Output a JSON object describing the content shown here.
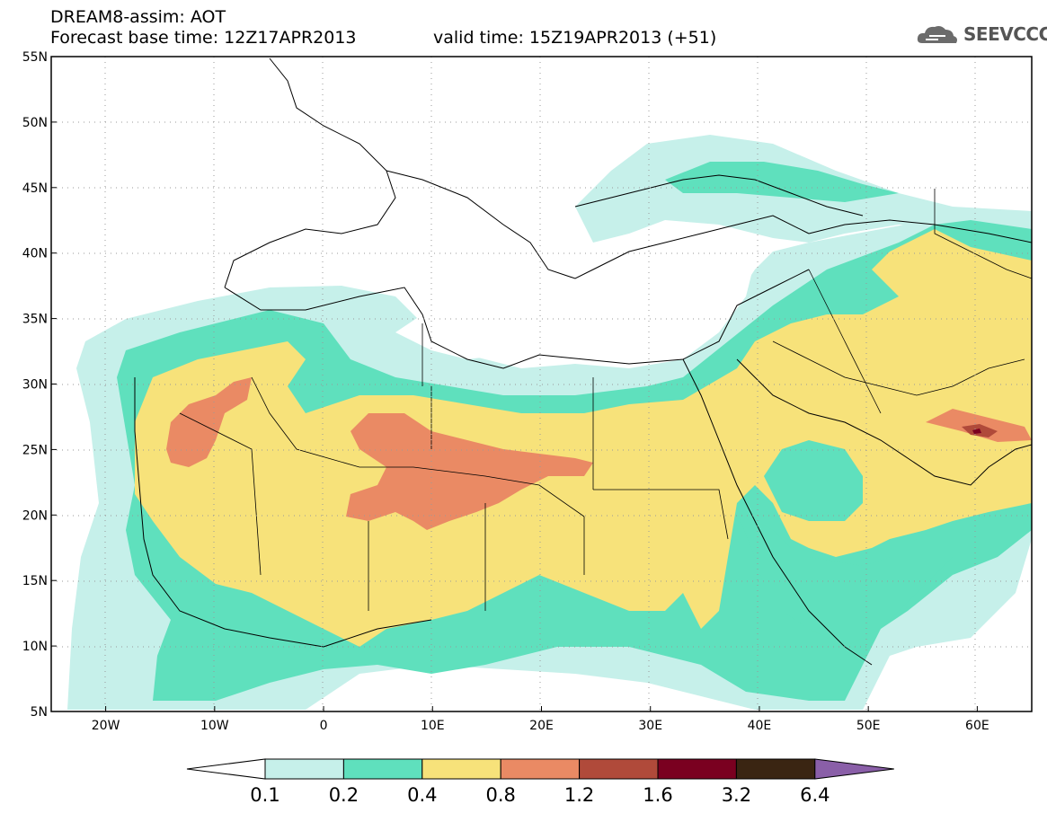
{
  "header": {
    "line1": "DREAM8-assim: AOT",
    "line2": "Forecast base time: 12Z17APR2013",
    "valid": "valid time: 15Z19APR2013 (+51)",
    "logo": "SEEVCCC",
    "logo_icon": "cloud-icon"
  },
  "map": {
    "lat_labels": [
      "55N",
      "50N",
      "45N",
      "40N",
      "35N",
      "30N",
      "25N",
      "20N",
      "15N",
      "10N",
      "5N"
    ],
    "lon_labels": [
      "20W",
      "10W",
      "0",
      "10E",
      "20E",
      "30E",
      "40E",
      "50E",
      "60E"
    ],
    "lat_range": [
      5,
      55
    ],
    "lon_range": [
      -25,
      65
    ],
    "grid": "dotted"
  },
  "colorbar": {
    "labels": [
      "0.1",
      "0.2",
      "0.4",
      "0.8",
      "1.2",
      "1.6",
      "3.2",
      "6.4"
    ],
    "colors": [
      "#ffffff",
      "#c6f0ea",
      "#5fe0bd",
      "#f7e27a",
      "#ea8a64",
      "#b04a3a",
      "#7a0020",
      "#3a2512",
      "#8a5fa8"
    ]
  }
}
